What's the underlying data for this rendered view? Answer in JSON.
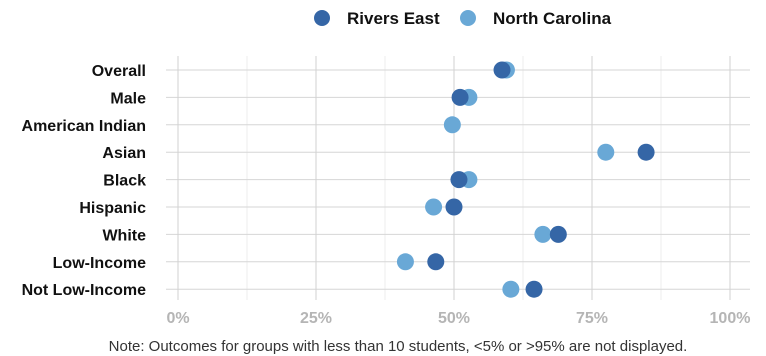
{
  "chart_data": {
    "type": "scatter",
    "orientation": "horizontal-dot-plot",
    "categories": [
      "Overall",
      "Male",
      "American Indian",
      "Asian",
      "Black",
      "Hispanic",
      "White",
      "Low-Income",
      "Not Low-Income"
    ],
    "series": [
      {
        "name": "Rivers East",
        "color": "#3566a6",
        "values": [
          58.7,
          51.1,
          null,
          84.8,
          50.9,
          50.0,
          68.9,
          46.7,
          64.5
        ]
      },
      {
        "name": "North Carolina",
        "color": "#69a8d6",
        "values": [
          59.5,
          52.7,
          49.7,
          77.5,
          52.7,
          46.3,
          66.1,
          41.2,
          60.3
        ]
      }
    ],
    "xlim": [
      0,
      100
    ],
    "xticks": [
      0,
      25,
      50,
      75,
      100
    ],
    "xtick_labels": [
      "0%",
      "25%",
      "50%",
      "75%",
      "100%"
    ],
    "grid": true,
    "legend_position": "top-center",
    "note": "Note: Outcomes for groups with less than 10 students, <5% or >95% are not displayed."
  }
}
